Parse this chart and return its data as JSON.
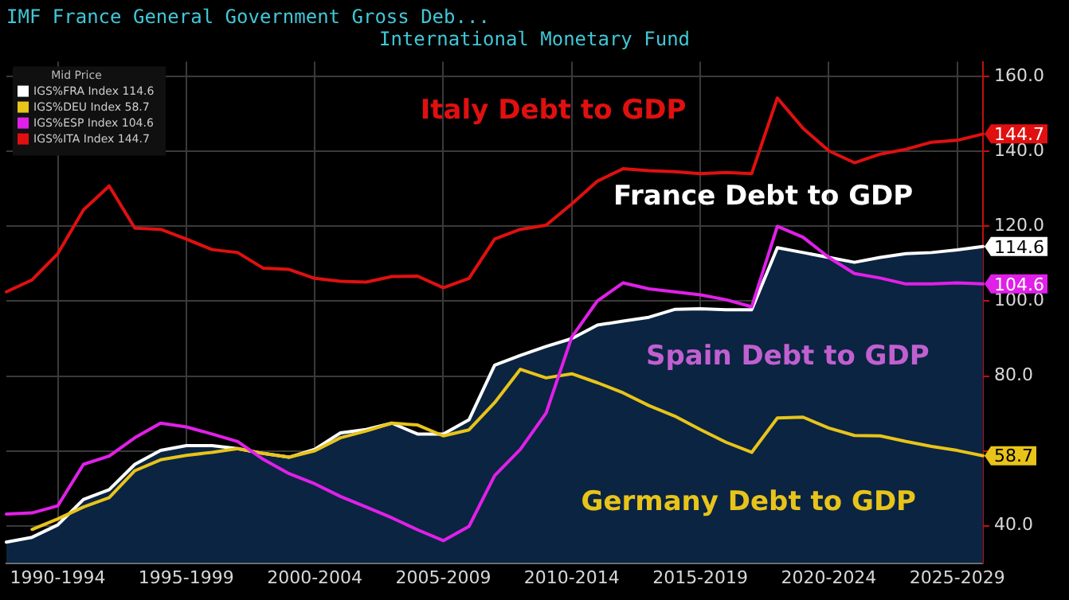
{
  "chart_data": {
    "type": "line",
    "title": "IMF France General Government Gross Deb...",
    "subtitle": "International Monetary Fund",
    "legend_title": "Mid Price",
    "legend": "top left",
    "grid": true,
    "categories": [
      null,
      null,
      "1990-1994",
      null,
      null,
      null,
      null,
      "1995-1999",
      null,
      null,
      null,
      null,
      "2000-2004",
      null,
      null,
      null,
      null,
      "2005-2009",
      null,
      null,
      null,
      null,
      "2010-2014",
      null,
      null,
      null,
      null,
      "2015-2019",
      null,
      null,
      null,
      null,
      "2020-2024",
      null,
      null,
      null,
      null,
      "2025-2029",
      null
    ],
    "ylim": [
      30,
      164
    ],
    "yticks": [
      {
        "value": 40,
        "label": "40.0"
      },
      {
        "value": 60,
        "label": null
      },
      {
        "value": 80,
        "label": "80.0"
      },
      {
        "value": 100,
        "label": "100.0"
      },
      {
        "value": 120,
        "label": "120.0"
      },
      {
        "value": 140,
        "label": "140.0"
      },
      {
        "value": 160,
        "label": "160.0"
      }
    ],
    "series": [
      {
        "name": "IGS%FRA Index 114.6",
        "type": "area",
        "color": "#ffffff",
        "values": [
          35.6,
          36.9,
          40.2,
          47,
          49.6,
          56.4,
          60.1,
          61.4,
          61.4,
          60.6,
          59.3,
          58.3,
          60.4,
          64.8,
          65.7,
          67.4,
          64.5,
          64.5,
          68.3,
          82.9,
          85.5,
          87.9,
          90,
          93.6,
          94.7,
          95.7,
          97.8,
          98,
          97.7,
          97.7,
          114.3,
          113,
          111.7,
          110.4,
          111.7,
          112.7,
          113,
          113.7,
          114.6
        ],
        "value_labels": [
          null,
          null,
          null,
          null,
          null,
          null,
          null,
          null,
          null,
          null,
          null,
          null,
          null,
          null,
          null,
          null,
          null,
          null,
          null,
          null,
          null,
          null,
          null,
          null,
          null,
          null,
          null,
          null,
          null,
          null,
          null,
          null,
          null,
          null,
          null,
          null,
          null,
          null,
          "114.6"
        ]
      },
      {
        "name": "IGS%DEU Index 58.7",
        "color": "#e8c41a",
        "values": [
          null,
          39,
          41.8,
          45,
          47.5,
          54.7,
          57.6,
          58.8,
          59.6,
          60.6,
          59.3,
          58.3,
          60,
          63.5,
          65.3,
          67.4,
          66.9,
          64,
          65.6,
          72.9,
          81.8,
          79.5,
          80.6,
          78.2,
          75.5,
          72.1,
          69.3,
          65.7,
          62.3,
          59.6,
          68.8,
          69,
          66.1,
          64.1,
          64,
          62.5,
          61.2,
          60.1,
          58.7
        ],
        "value_labels": [
          null,
          null,
          null,
          null,
          null,
          null,
          null,
          null,
          null,
          null,
          null,
          null,
          null,
          null,
          null,
          null,
          null,
          null,
          null,
          null,
          null,
          null,
          null,
          null,
          null,
          null,
          null,
          null,
          null,
          null,
          null,
          null,
          null,
          null,
          null,
          null,
          null,
          null,
          "58.7"
        ]
      },
      {
        "name": "IGS%ESP Index 104.6",
        "color": "#e020e8",
        "values": [
          43.1,
          43.4,
          45.3,
          56.4,
          58.6,
          63.5,
          67.4,
          66.4,
          64.5,
          62.5,
          57.7,
          53.9,
          51.2,
          47.8,
          45,
          42.1,
          38.9,
          36,
          39.8,
          53.4,
          60.4,
          70.1,
          90.4,
          100.1,
          104.9,
          103.3,
          102.5,
          101.7,
          100.4,
          98.5,
          120,
          117.1,
          111.7,
          107.4,
          106.2,
          104.6,
          104.6,
          104.9,
          104.6
        ],
        "value_labels": [
          null,
          null,
          null,
          null,
          null,
          null,
          null,
          null,
          null,
          null,
          null,
          null,
          null,
          null,
          null,
          null,
          null,
          null,
          null,
          null,
          null,
          null,
          null,
          null,
          null,
          null,
          null,
          null,
          null,
          null,
          null,
          null,
          null,
          null,
          null,
          null,
          null,
          null,
          "104.6"
        ]
      },
      {
        "name": "IGS%ITA Index 144.7",
        "color": "#e01010",
        "values": [
          102.5,
          105.7,
          112.7,
          124.4,
          130.8,
          119.5,
          119.2,
          116.6,
          113.8,
          113,
          108.8,
          108.5,
          106.1,
          105.3,
          105.1,
          106.6,
          106.7,
          103.6,
          106.1,
          116.6,
          119.2,
          120.3,
          126,
          132.1,
          135.4,
          134.9,
          134.6,
          134.1,
          134.4,
          134.1,
          154.3,
          146.2,
          140.2,
          137,
          139.3,
          140.6,
          142.5,
          143,
          144.7
        ],
        "value_labels": [
          null,
          null,
          null,
          null,
          null,
          null,
          null,
          null,
          null,
          null,
          null,
          null,
          null,
          null,
          null,
          null,
          null,
          null,
          null,
          null,
          null,
          null,
          null,
          null,
          null,
          null,
          null,
          null,
          null,
          null,
          null,
          null,
          null,
          null,
          null,
          null,
          null,
          null,
          "144.7"
        ]
      }
    ],
    "annotations": [
      "France Debt to GDP",
      "Germany Debt to GDP",
      "Spain Debt to GDP",
      "Italy Debt to GDP"
    ]
  }
}
